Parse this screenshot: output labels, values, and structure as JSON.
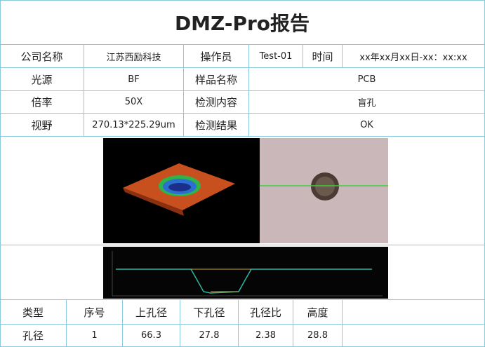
{
  "header": {
    "title": "DMZ-Pro报告"
  },
  "info": {
    "rows": [
      [
        "公司名称",
        "江苏西励科技",
        "操作员",
        "Test-01",
        "时间",
        "xx年xx月xx日-xx：xx:xx"
      ],
      [
        "光源",
        "BF",
        "样品名称",
        "PCB"
      ],
      [
        "倍率",
        "50X",
        "检测内容",
        "盲孔"
      ],
      [
        "视野",
        "270.13*225.29um",
        "检测结果",
        "OK"
      ]
    ]
  },
  "results": {
    "columns": [
      "类型",
      "序号",
      "上孔径",
      "下孔径",
      "孔径比",
      "高度"
    ],
    "rows": [
      [
        "孔径",
        "1",
        "66.3",
        "27.8",
        "2.38",
        "28.8"
      ]
    ]
  }
}
